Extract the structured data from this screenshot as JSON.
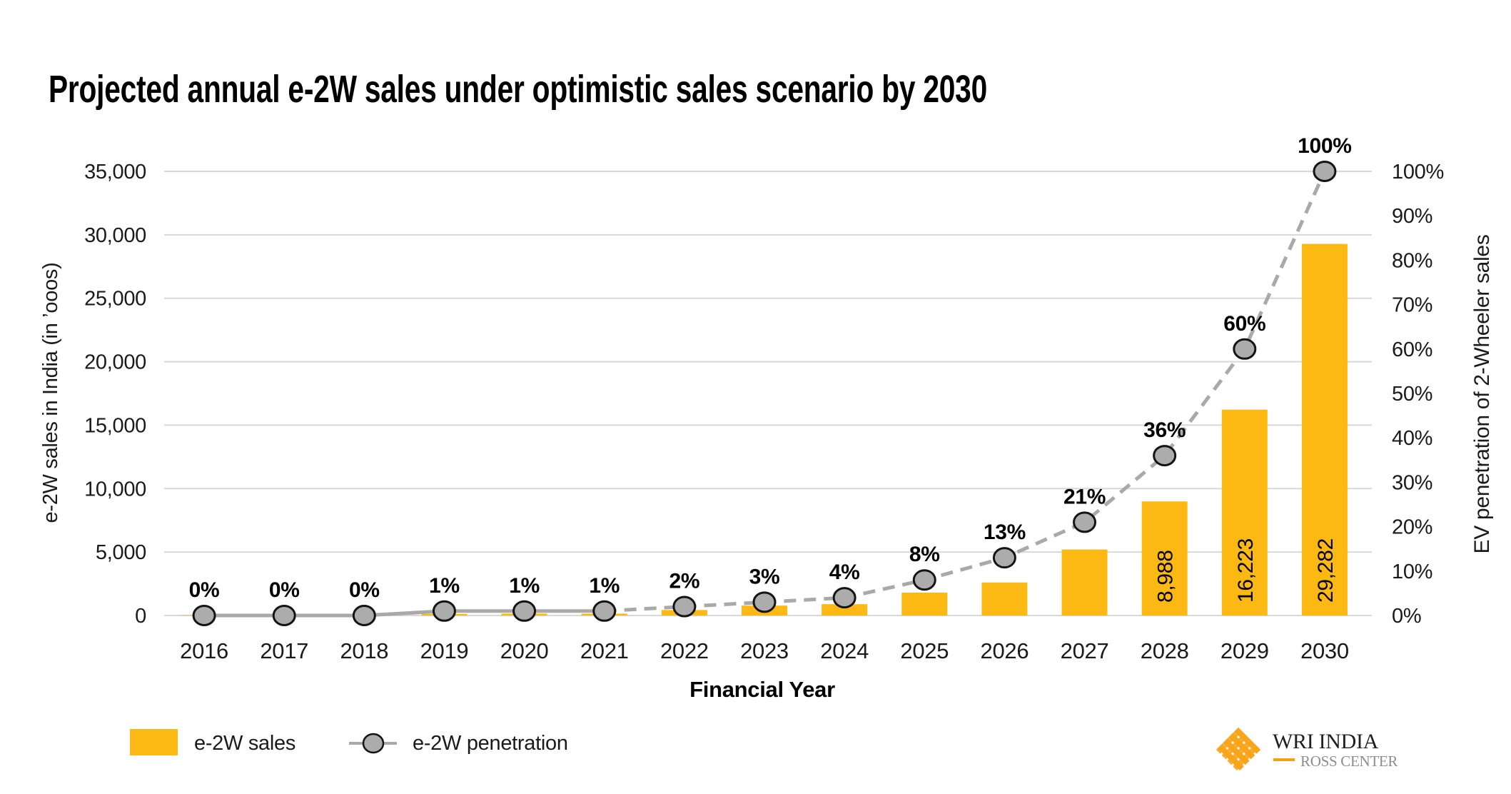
{
  "title": "Projected annual e-2W sales under optimistic sales scenario by 2030",
  "axes": {
    "x_title": "Financial Year",
    "y_left_title": "e-2W sales in India (in ’ooos)",
    "y_right_title": "EV penetration of 2-Wheeler sales",
    "y_left_tick_labels": [
      "0",
      "5,000",
      "10,000",
      "15,000",
      "20,000",
      "25,000",
      "30,000",
      "35,000"
    ],
    "y_right_tick_labels": [
      "0%",
      "10%",
      "20%",
      "30%",
      "40%",
      "50%",
      "60%",
      "70%",
      "80%",
      "90%",
      "100%"
    ],
    "y_left_max": 35000,
    "y_right_max": 100
  },
  "legend": {
    "bar_label": "e-2W sales",
    "line_label": "e-2W penetration"
  },
  "logo": {
    "line1": "WRI INDIA",
    "line2": "ROSS CENTER"
  },
  "colors": {
    "bar": "#FDB913",
    "marker_fill": "#ACACAC",
    "marker_stroke": "#141414",
    "line": "#A9A9A9",
    "gridline": "#D8D8D8",
    "text": "#1A1A1A",
    "logo_mark": "#F9A51A",
    "logo_dash": "#F6A01A",
    "logo_text1": "#1F1F1F",
    "logo_text2": "#8D8D8D"
  },
  "chart_data": {
    "type": "bar+line combo",
    "categories": [
      "2016",
      "2017",
      "2018",
      "2019",
      "2020",
      "2021",
      "2022",
      "2023",
      "2024",
      "2025",
      "2026",
      "2027",
      "2028",
      "2029",
      "2030"
    ],
    "series": [
      {
        "name": "e-2W sales",
        "type": "bar",
        "axis": "left",
        "values": [
          20,
          25,
          55,
          126,
          152,
          144,
          430,
          780,
          890,
          1800,
          2600,
          5200,
          8988,
          16223,
          29282
        ],
        "value_labels": [
          "",
          "",
          "",
          "",
          "",
          "",
          "",
          "",
          "",
          "",
          "",
          "",
          "8,988",
          "16,223",
          "29,282"
        ]
      },
      {
        "name": "e-2W penetration",
        "type": "line",
        "axis": "right",
        "values": [
          0,
          0,
          0,
          1,
          1,
          1,
          2,
          3,
          4,
          8,
          13,
          21,
          36,
          60,
          100
        ],
        "point_labels": [
          "0%",
          "0%",
          "0%",
          "1%",
          "1%",
          "1%",
          "2%",
          "3%",
          "4%",
          "8%",
          "13%",
          "21%",
          "36%",
          "60%",
          "100%"
        ],
        "solid_until_index": 5,
        "dashed_after_index": 5
      }
    ],
    "title": "Projected annual e-2W sales under optimistic sales scenario by 2030",
    "xlabel": "Financial Year",
    "ylabel_left": "e-2W sales in India (in ’ooos)",
    "ylabel_right": "EV penetration of 2-Wheeler sales",
    "ylim_left": [
      0,
      35000
    ],
    "ylim_right": [
      0,
      100
    ],
    "grid": "horizontal, every 5,000 units",
    "legend_position": "bottom-left"
  }
}
